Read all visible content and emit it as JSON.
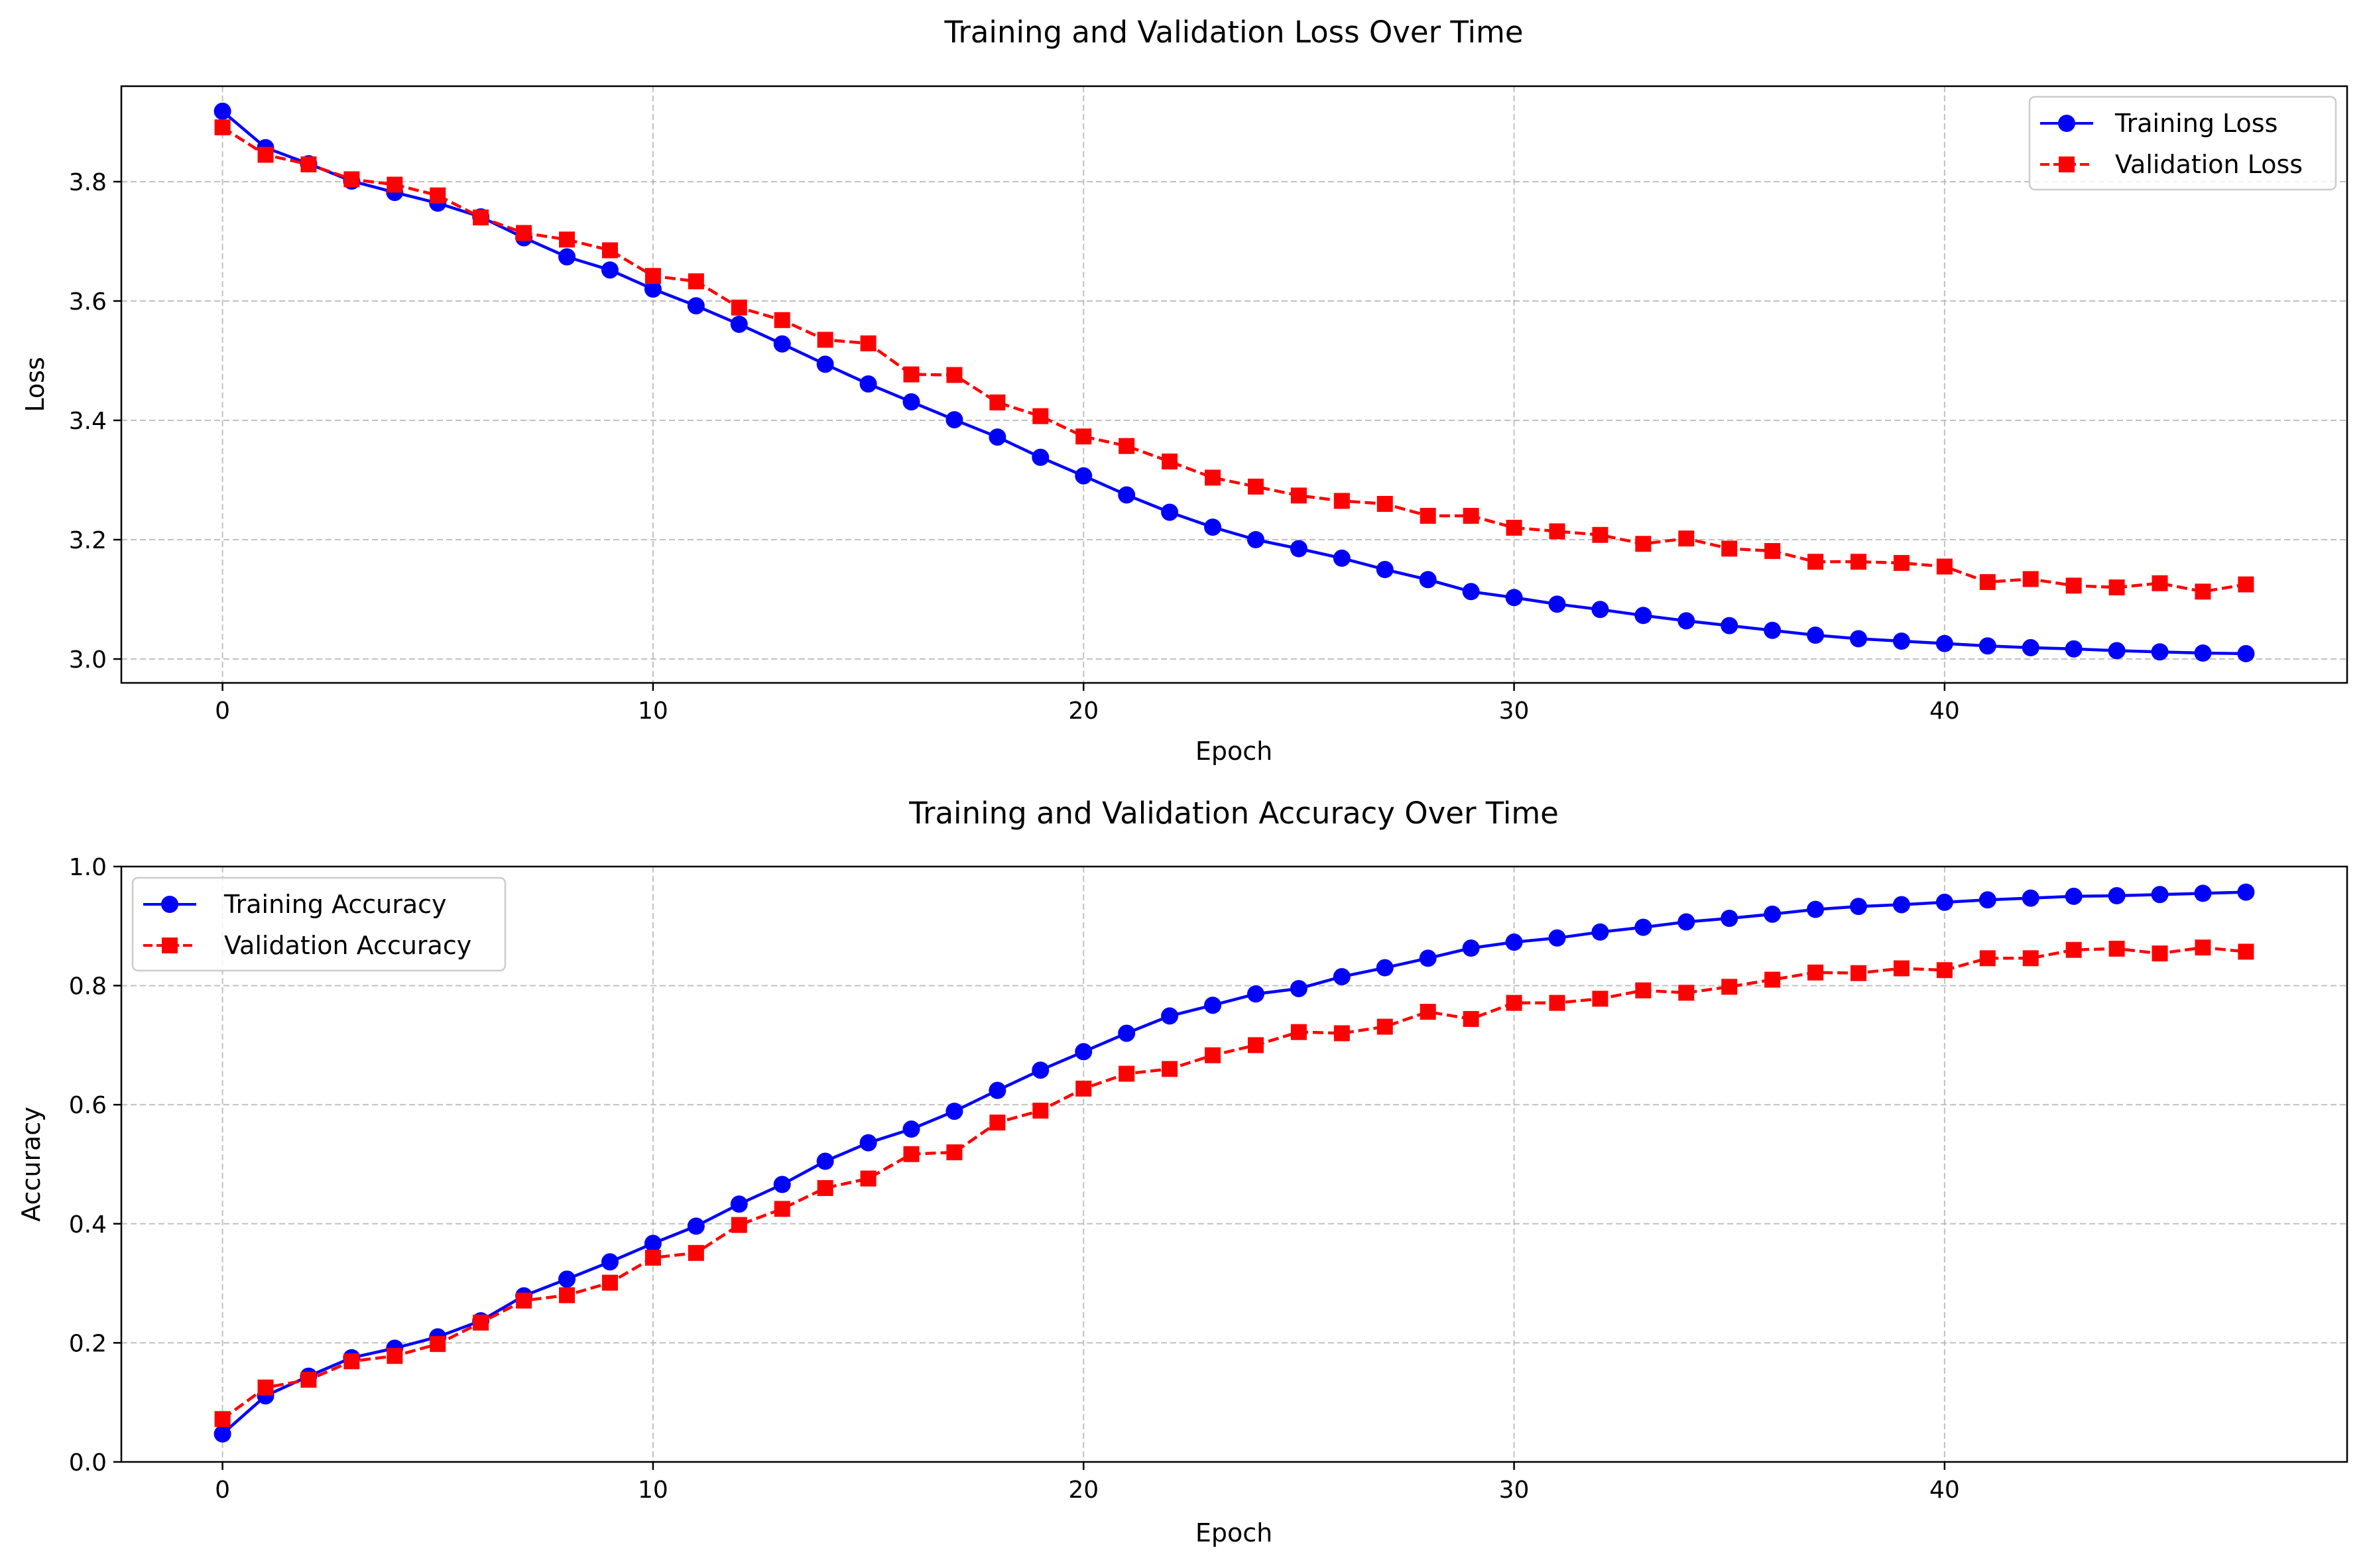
{
  "charts": [
    {
      "chart_data": {
        "type": "line",
        "title": "Training and Validation Loss Over Time",
        "xlabel": "Epoch",
        "ylabel": "Loss",
        "xlim": [
          -2.35,
          49.35
        ],
        "ylim": [
          2.96,
          3.96
        ],
        "xticks": [
          0,
          10,
          20,
          30,
          40
        ],
        "yticks": [
          3.0,
          3.2,
          3.4,
          3.6,
          3.8
        ],
        "grid": true,
        "legend_position": "upper right",
        "x": [
          0,
          1,
          2,
          3,
          4,
          5,
          6,
          7,
          8,
          9,
          10,
          11,
          12,
          13,
          14,
          15,
          16,
          17,
          18,
          19,
          20,
          21,
          22,
          23,
          24,
          25,
          26,
          27,
          28,
          29,
          30,
          31,
          32,
          33,
          34,
          35,
          36,
          37,
          38,
          39,
          40,
          41,
          42,
          43,
          44,
          45,
          46,
          47
        ],
        "series": [
          {
            "name": "Training Loss",
            "color": "#0000ff",
            "marker": "circle",
            "linestyle": "solid",
            "values": [
              3.918,
              3.857,
              3.83,
              3.801,
              3.782,
              3.764,
              3.741,
              3.706,
              3.674,
              3.652,
              3.62,
              3.592,
              3.561,
              3.528,
              3.494,
              3.461,
              3.431,
              3.401,
              3.372,
              3.338,
              3.307,
              3.275,
              3.246,
              3.221,
              3.2,
              3.185,
              3.169,
              3.15,
              3.133,
              3.113,
              3.103,
              3.092,
              3.083,
              3.073,
              3.064,
              3.056,
              3.048,
              3.04,
              3.034,
              3.03,
              3.026,
              3.022,
              3.019,
              3.017,
              3.014,
              3.012,
              3.01,
              3.009
            ]
          },
          {
            "name": "Validation Loss",
            "color": "#ff0000",
            "marker": "square",
            "linestyle": "dashed",
            "values": [
              3.891,
              3.845,
              3.829,
              3.804,
              3.795,
              3.777,
              3.74,
              3.714,
              3.703,
              3.685,
              3.642,
              3.633,
              3.589,
              3.568,
              3.535,
              3.529,
              3.477,
              3.476,
              3.43,
              3.407,
              3.373,
              3.357,
              3.331,
              3.304,
              3.289,
              3.274,
              3.265,
              3.26,
              3.24,
              3.24,
              3.22,
              3.214,
              3.208,
              3.193,
              3.202,
              3.185,
              3.181,
              3.163,
              3.163,
              3.161,
              3.155,
              3.129,
              3.134,
              3.123,
              3.12,
              3.127,
              3.113,
              3.125
            ]
          }
        ]
      }
    },
    {
      "chart_data": {
        "type": "line",
        "title": "Training and Validation Accuracy Over Time",
        "xlabel": "Epoch",
        "ylabel": "Accuracy",
        "xlim": [
          -2.35,
          49.35
        ],
        "ylim": [
          0.0,
          1.0
        ],
        "xticks": [
          0,
          10,
          20,
          30,
          40
        ],
        "yticks": [
          0.0,
          0.2,
          0.4,
          0.6,
          0.8,
          1.0
        ],
        "grid": true,
        "legend_position": "upper left",
        "x": [
          0,
          1,
          2,
          3,
          4,
          5,
          6,
          7,
          8,
          9,
          10,
          11,
          12,
          13,
          14,
          15,
          16,
          17,
          18,
          19,
          20,
          21,
          22,
          23,
          24,
          25,
          26,
          27,
          28,
          29,
          30,
          31,
          32,
          33,
          34,
          35,
          36,
          37,
          38,
          39,
          40,
          41,
          42,
          43,
          44,
          45,
          46,
          47
        ],
        "series": [
          {
            "name": "Training Accuracy",
            "color": "#0000ff",
            "marker": "circle",
            "linestyle": "solid",
            "values": [
              0.047,
              0.111,
              0.144,
              0.175,
              0.191,
              0.21,
              0.237,
              0.279,
              0.307,
              0.336,
              0.367,
              0.396,
              0.433,
              0.466,
              0.505,
              0.536,
              0.559,
              0.589,
              0.624,
              0.658,
              0.689,
              0.72,
              0.749,
              0.767,
              0.786,
              0.795,
              0.815,
              0.83,
              0.846,
              0.863,
              0.873,
              0.88,
              0.89,
              0.898,
              0.907,
              0.913,
              0.92,
              0.928,
              0.933,
              0.936,
              0.94,
              0.944,
              0.947,
              0.95,
              0.951,
              0.953,
              0.955,
              0.957
            ]
          },
          {
            "name": "Validation Accuracy",
            "color": "#ff0000",
            "marker": "square",
            "linestyle": "dashed",
            "values": [
              0.072,
              0.125,
              0.138,
              0.169,
              0.178,
              0.198,
              0.234,
              0.271,
              0.28,
              0.301,
              0.343,
              0.351,
              0.398,
              0.425,
              0.46,
              0.476,
              0.517,
              0.52,
              0.57,
              0.59,
              0.627,
              0.652,
              0.66,
              0.683,
              0.7,
              0.722,
              0.72,
              0.731,
              0.756,
              0.744,
              0.771,
              0.771,
              0.778,
              0.792,
              0.788,
              0.798,
              0.81,
              0.822,
              0.821,
              0.829,
              0.826,
              0.846,
              0.846,
              0.86,
              0.862,
              0.854,
              0.864,
              0.857
            ]
          }
        ]
      }
    }
  ]
}
